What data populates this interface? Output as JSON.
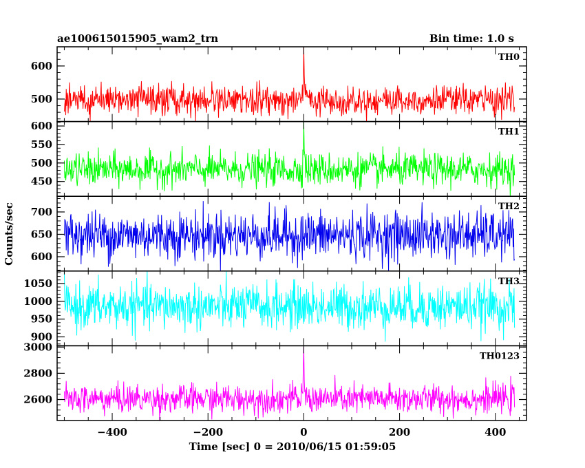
{
  "chart_data": {
    "type": "line",
    "title": "ae100615015905_wam2_trn",
    "subtitle": "Bin time: 1.0 s",
    "xlabel": "Time [sec] 0 = 2010/06/15 01:59:05",
    "ylabel": "Counts/sec",
    "xlim": [
      -515,
      465
    ],
    "x_ticks": [
      -400,
      -200,
      0,
      200,
      400
    ],
    "x_tick_labels": [
      "−400",
      "−200",
      "0",
      "200",
      "400"
    ],
    "x_range": [
      -500,
      440
    ],
    "bin_time": 1.0,
    "grid": false,
    "series": [
      {
        "name": "TH0",
        "color": "#ff0000",
        "ylim": [
          432,
          658
        ],
        "y_ticks": [
          500,
          600
        ],
        "mean": 497,
        "noise_sd": 22,
        "peak_at": 0,
        "peak_value": 658
      },
      {
        "name": "TH1",
        "color": "#00ff00",
        "ylim": [
          410,
          612
        ],
        "y_ticks": [
          450,
          500,
          550,
          600
        ],
        "mean": 482,
        "noise_sd": 22,
        "peak_at": 0,
        "peak_value": 612
      },
      {
        "name": "TH2",
        "color": "#0000ee",
        "ylim": [
          568,
          735
        ],
        "y_ticks": [
          600,
          650,
          700
        ],
        "mean": 648,
        "noise_sd": 27,
        "peak_at": null,
        "peak_value": null
      },
      {
        "name": "TH3",
        "color": "#00ffff",
        "ylim": [
          875,
          1085
        ],
        "y_ticks": [
          900,
          950,
          1000,
          1050
        ],
        "mean": 985,
        "noise_sd": 32,
        "peak_at": null,
        "peak_value": null
      },
      {
        "name": "TH0123",
        "color": "#ff00ff",
        "ylim": [
          2440,
          3010
        ],
        "y_ticks": [
          2600,
          2800,
          3000
        ],
        "mean": 2605,
        "noise_sd": 55,
        "peak_at": 0,
        "peak_value": 3000
      }
    ]
  }
}
